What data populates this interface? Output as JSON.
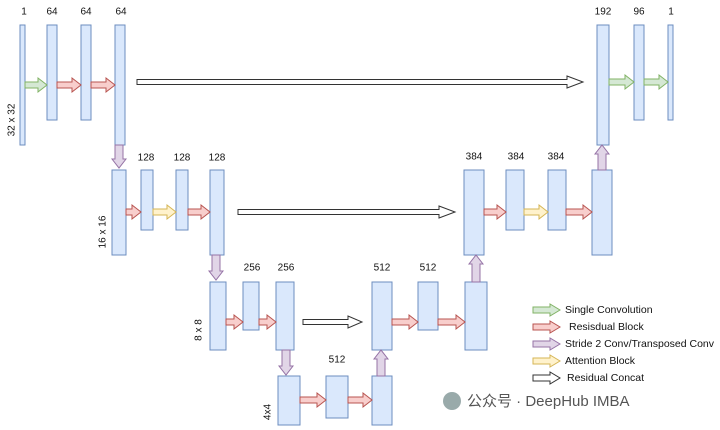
{
  "channel_labels": [
    "1",
    "64",
    "64",
    "64",
    "192",
    "96",
    "1",
    "128",
    "128",
    "128",
    "384",
    "384",
    "384",
    "256",
    "256",
    "512",
    "512",
    "512"
  ],
  "size_labels": [
    "32 x 32",
    "16 x 16",
    "8 x 8",
    "4x4"
  ],
  "legend": [
    "Single Convolution",
    "Resisdual Block",
    "Stride 2 Conv/Transposed Conv",
    "Attention Block",
    "Residual Concat"
  ],
  "watermark": "公众号 · DeepHub IMBA"
}
